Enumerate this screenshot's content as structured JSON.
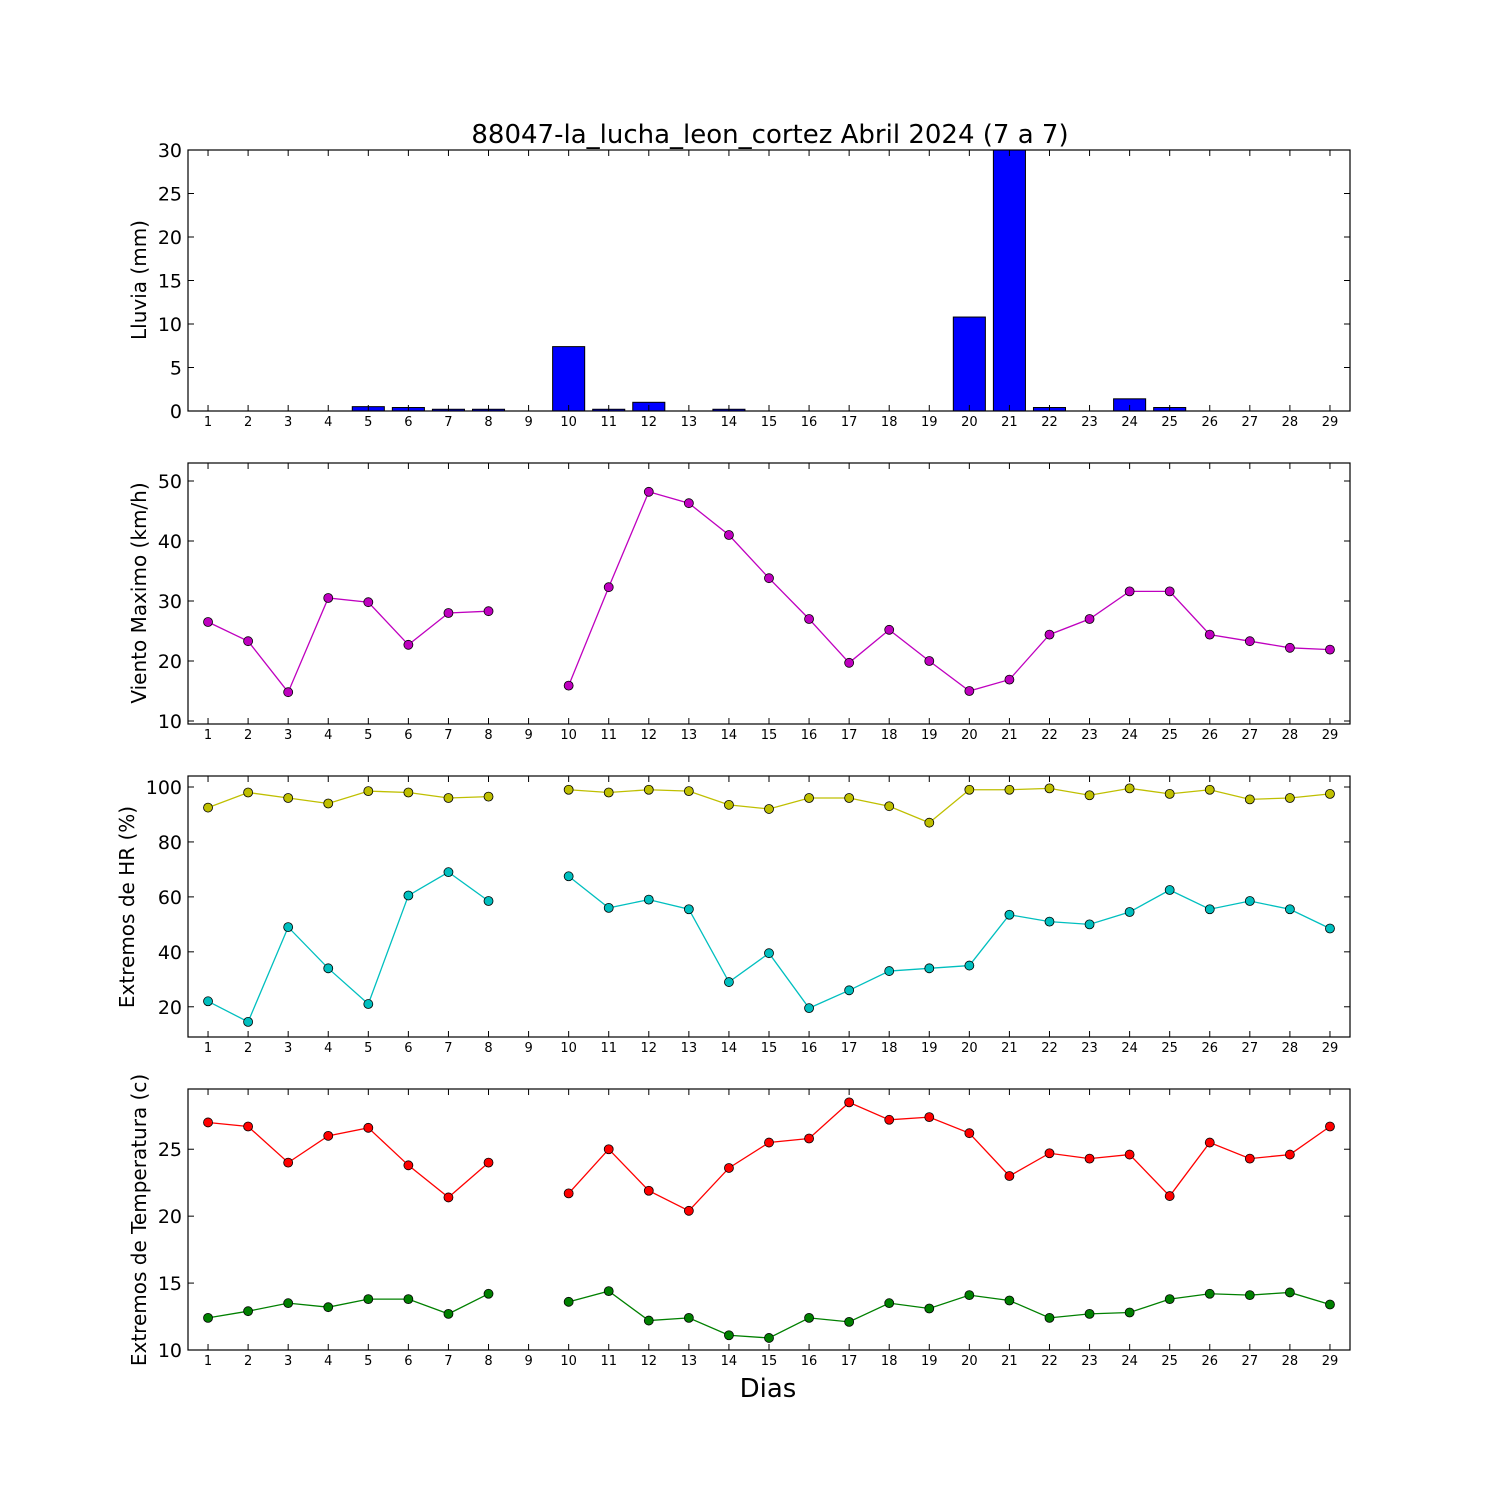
{
  "figure": {
    "title": "88047-la_lucha_leon_cortez Abril 2024  (7 a 7)",
    "xlabel": "Dias"
  },
  "chart_data": [
    {
      "type": "bar",
      "ylabel": "Lluvia (mm)",
      "x": [
        1,
        2,
        3,
        4,
        5,
        6,
        7,
        8,
        9,
        10,
        11,
        12,
        13,
        14,
        15,
        16,
        17,
        18,
        19,
        20,
        21,
        22,
        23,
        24,
        25,
        26,
        27,
        28,
        29
      ],
      "xlim": [
        0.5,
        29.5
      ],
      "ylim": [
        0,
        30
      ],
      "yticks": [
        0,
        5,
        10,
        15,
        20,
        25,
        30
      ],
      "series": [
        {
          "color": "#0000ff",
          "values": [
            0,
            0,
            0,
            0,
            0.5,
            0.4,
            0.2,
            0.2,
            0,
            7.4,
            0.2,
            1.0,
            0,
            0.2,
            0,
            0,
            0,
            0,
            0,
            10.8,
            30,
            0.4,
            0,
            1.4,
            0.4,
            0,
            0,
            0,
            0
          ]
        }
      ]
    },
    {
      "type": "line",
      "ylabel": "Viento Maximo (km/h)",
      "x": [
        1,
        2,
        3,
        4,
        5,
        6,
        7,
        8,
        9,
        10,
        11,
        12,
        13,
        14,
        15,
        16,
        17,
        18,
        19,
        20,
        21,
        22,
        23,
        24,
        25,
        26,
        27,
        28,
        29
      ],
      "xlim": [
        0.5,
        29.5
      ],
      "ylim": [
        9.5,
        53
      ],
      "yticks": [
        10,
        20,
        30,
        40,
        50
      ],
      "series": [
        {
          "color": "#bf00bf",
          "values": [
            26.5,
            23.3,
            14.8,
            30.5,
            29.8,
            22.7,
            28.0,
            28.3,
            null,
            15.9,
            32.3,
            48.2,
            46.3,
            41.0,
            33.8,
            27.0,
            19.7,
            25.2,
            20.0,
            15.0,
            16.9,
            24.4,
            27.0,
            31.6,
            31.6,
            24.4,
            23.3,
            22.2,
            21.9
          ]
        }
      ]
    },
    {
      "type": "line",
      "ylabel": "Extremos de HR (%)",
      "x": [
        1,
        2,
        3,
        4,
        5,
        6,
        7,
        8,
        9,
        10,
        11,
        12,
        13,
        14,
        15,
        16,
        17,
        18,
        19,
        20,
        21,
        22,
        23,
        24,
        25,
        26,
        27,
        28,
        29
      ],
      "xlim": [
        0.5,
        29.5
      ],
      "ylim": [
        9,
        104
      ],
      "yticks": [
        20,
        40,
        60,
        80,
        100
      ],
      "series": [
        {
          "color": "#bfbf00",
          "values": [
            92.5,
            98,
            96,
            94,
            98.5,
            98,
            96,
            96.5,
            null,
            99,
            98,
            99,
            98.5,
            93.5,
            92,
            96,
            96,
            93,
            87,
            99,
            99,
            99.5,
            97,
            99.5,
            97.5,
            99,
            95.5,
            96,
            97.5
          ]
        },
        {
          "color": "#00bfbf",
          "values": [
            22,
            14.5,
            49,
            34,
            21,
            60.5,
            69,
            58.5,
            null,
            67.5,
            56,
            59,
            55.5,
            29,
            39.5,
            19.5,
            26,
            33,
            34,
            35,
            53.5,
            51,
            50,
            54.5,
            62.5,
            55.5,
            58.5,
            55.5,
            48.5
          ]
        }
      ]
    },
    {
      "type": "line",
      "ylabel": "Extremos de Temperatura (c)",
      "x": [
        1,
        2,
        3,
        4,
        5,
        6,
        7,
        8,
        9,
        10,
        11,
        12,
        13,
        14,
        15,
        16,
        17,
        18,
        19,
        20,
        21,
        22,
        23,
        24,
        25,
        26,
        27,
        28,
        29
      ],
      "xlim": [
        0.5,
        29.5
      ],
      "ylim": [
        10,
        29.5
      ],
      "yticks": [
        10,
        15,
        20,
        25
      ],
      "series": [
        {
          "color": "#ff0000",
          "values": [
            27.0,
            26.7,
            24.0,
            26.0,
            26.6,
            23.8,
            21.4,
            24.0,
            null,
            21.7,
            25.0,
            21.9,
            20.4,
            23.6,
            25.5,
            25.8,
            28.5,
            27.2,
            27.4,
            26.2,
            23.0,
            24.7,
            24.3,
            24.6,
            21.5,
            25.5,
            24.3,
            24.6,
            26.7
          ]
        },
        {
          "color": "#008000",
          "values": [
            12.4,
            12.9,
            13.5,
            13.2,
            13.8,
            13.8,
            12.7,
            14.2,
            null,
            13.6,
            14.4,
            12.2,
            12.4,
            11.1,
            10.9,
            12.4,
            12.1,
            13.5,
            13.1,
            14.1,
            13.7,
            12.4,
            12.7,
            12.8,
            13.8,
            14.2,
            14.1,
            14.3,
            13.4
          ]
        }
      ]
    }
  ]
}
